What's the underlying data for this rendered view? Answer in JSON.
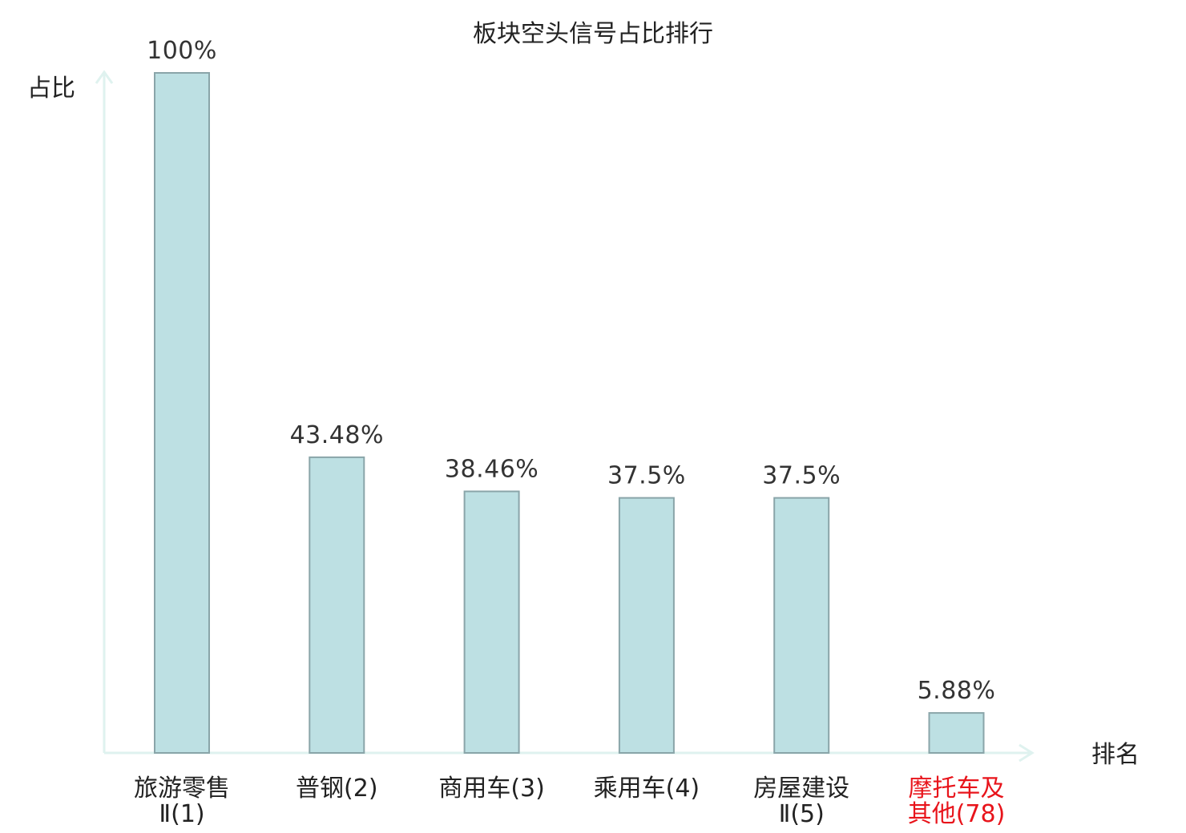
{
  "chart_data": {
    "type": "bar",
    "title": "板块空头信号占比排行",
    "ylabel": "占比",
    "xlabel": "排名",
    "ylim": [
      0,
      100
    ],
    "categories": [
      [
        "旅游零售",
        "Ⅱ(1)"
      ],
      [
        "普钢(2)"
      ],
      [
        "商用车(3)"
      ],
      [
        "乘用车(4)"
      ],
      [
        "房屋建设",
        "Ⅱ(5)"
      ],
      [
        "摩托车及",
        "其他(78)"
      ]
    ],
    "category_colors": [
      "#222222",
      "#222222",
      "#222222",
      "#222222",
      "#222222",
      "#e8141b"
    ],
    "values": [
      100,
      43.48,
      38.46,
      37.5,
      37.5,
      5.88
    ],
    "value_labels": [
      "100%",
      "43.48%",
      "38.46%",
      "37.5%",
      "37.5%",
      "5.88%"
    ],
    "grid": false,
    "legend": "none",
    "colors": {
      "bar_fill": "#bde0e3",
      "bar_stroke": "#8aa5a9",
      "axis": "#dff2ef",
      "text": "#222222",
      "highlight": "#e8141b"
    }
  }
}
